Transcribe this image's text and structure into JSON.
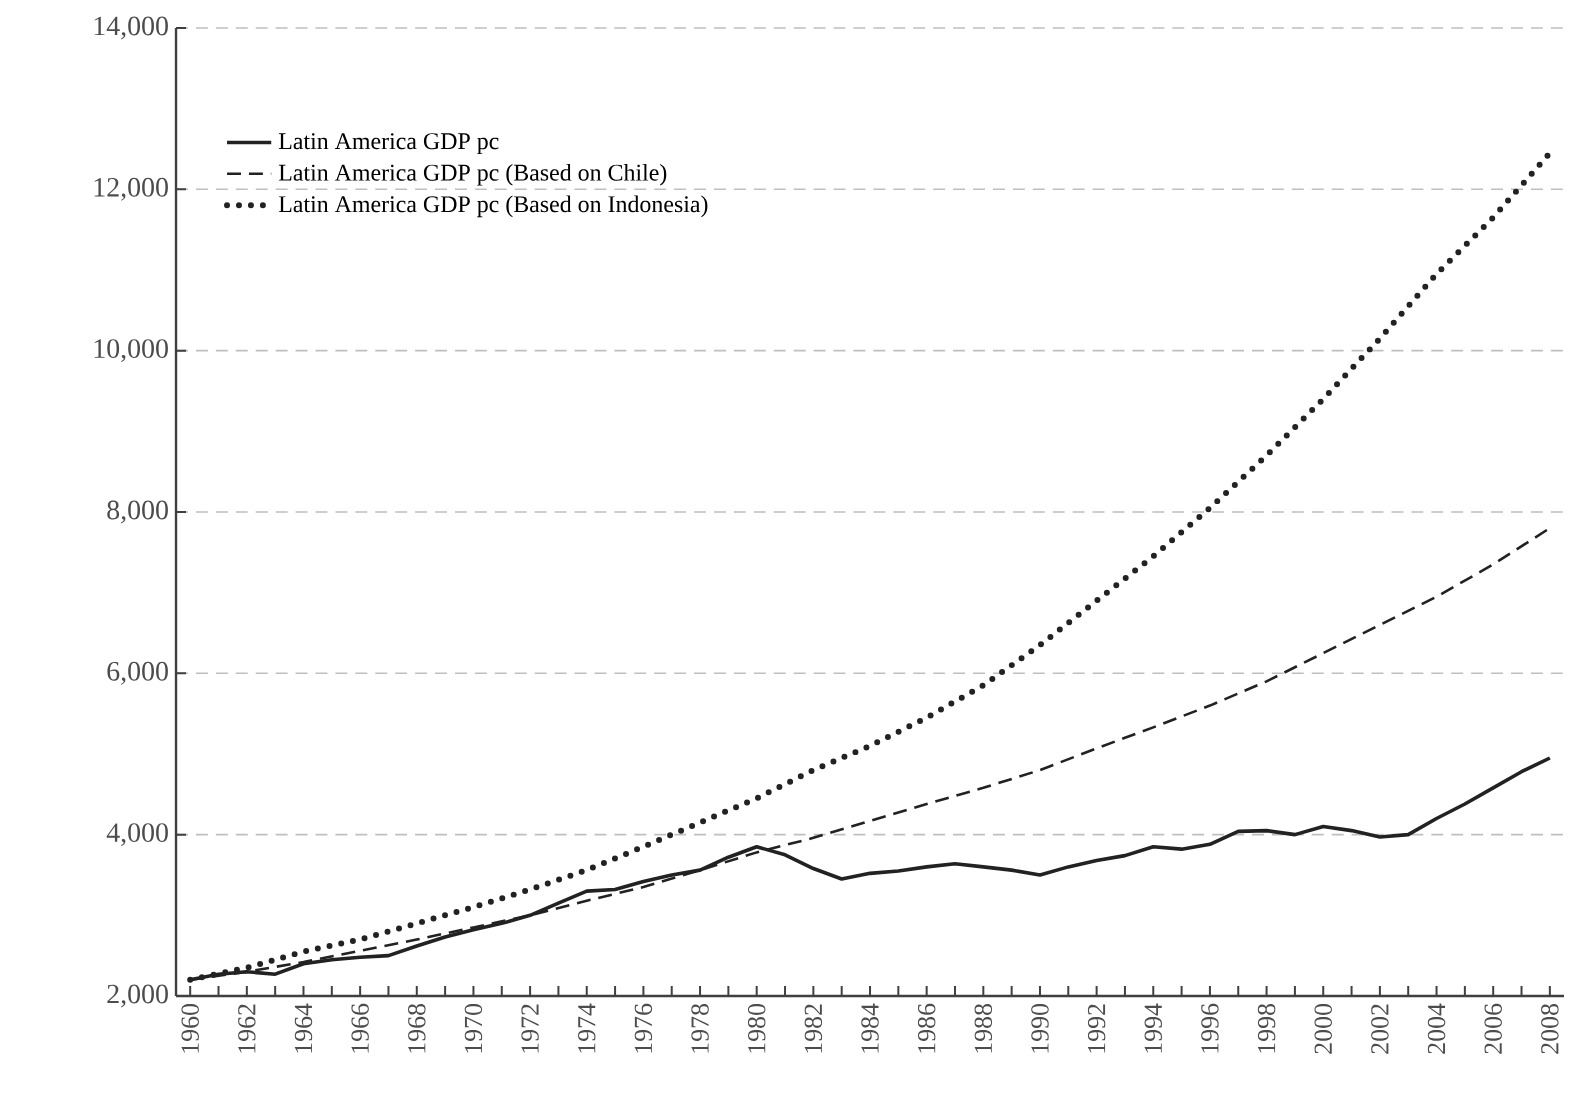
{
  "chart_data": {
    "type": "line",
    "xlim": [
      1959.5,
      2008.5
    ],
    "ylim": [
      2000,
      14000
    ],
    "yticks": [
      {
        "value": 2000,
        "label": "2,000"
      },
      {
        "value": 4000,
        "label": "4,000"
      },
      {
        "value": 6000,
        "label": "6,000"
      },
      {
        "value": 8000,
        "label": "8,000"
      },
      {
        "value": 10000,
        "label": "10,000"
      },
      {
        "value": 12000,
        "label": "12,000"
      },
      {
        "value": 14000,
        "label": "14,000"
      }
    ],
    "xticks": [
      1960,
      {
        "value": 1961,
        "label": null
      },
      1962,
      {
        "value": 1963,
        "label": null
      },
      1964,
      {
        "value": 1965,
        "label": null
      },
      1966,
      {
        "value": 1967,
        "label": null
      },
      1968,
      {
        "value": 1969,
        "label": null
      },
      1970,
      {
        "value": 1971,
        "label": null
      },
      1972,
      {
        "value": 1973,
        "label": null
      },
      1974,
      {
        "value": 1975,
        "label": null
      },
      1976,
      {
        "value": 1977,
        "label": null
      },
      1978,
      {
        "value": 1979,
        "label": null
      },
      1980,
      {
        "value": 1981,
        "label": null
      },
      1982,
      {
        "value": 1983,
        "label": null
      },
      1984,
      {
        "value": 1985,
        "label": null
      },
      1986,
      {
        "value": 1987,
        "label": null
      },
      1988,
      {
        "value": 1989,
        "label": null
      },
      1990,
      {
        "value": 1991,
        "label": null
      },
      1992,
      {
        "value": 1993,
        "label": null
      },
      1994,
      {
        "value": 1995,
        "label": null
      },
      1996,
      {
        "value": 1997,
        "label": null
      },
      1998,
      {
        "value": 1999,
        "label": null
      },
      2000,
      {
        "value": 2001,
        "label": null
      },
      2002,
      {
        "value": 2003,
        "label": null
      },
      2004,
      {
        "value": 2005,
        "label": null
      },
      2006,
      {
        "value": 2007,
        "label": null
      },
      2008
    ],
    "grid": "y",
    "legend": "top left",
    "marker": "none",
    "series": [
      {
        "name": "Latin America GDP pc",
        "color": "#222222",
        "line_style": "solid",
        "x": [
          1960,
          1961,
          1962,
          1963,
          1964,
          1965,
          1966,
          1967,
          1968,
          1969,
          1970,
          1971,
          1972,
          1973,
          1974,
          1975,
          1976,
          1977,
          1978,
          1979,
          1980,
          1981,
          1982,
          1983,
          1984,
          1985,
          1986,
          1987,
          1988,
          1989,
          1990,
          1991,
          1992,
          1993,
          1994,
          1995,
          1996,
          1997,
          1998,
          1999,
          2000,
          2001,
          2002,
          2003,
          2004,
          2005,
          2006,
          2007,
          2008
        ],
        "values": [
          2200,
          2270,
          2300,
          2270,
          2400,
          2450,
          2480,
          2500,
          2620,
          2730,
          2820,
          2900,
          3000,
          3150,
          3300,
          3320,
          3420,
          3500,
          3560,
          3720,
          3850,
          3750,
          3580,
          3450,
          3520,
          3550,
          3600,
          3640,
          3600,
          3560,
          3500,
          3600,
          3680,
          3740,
          3850,
          3820,
          3880,
          4040,
          4050,
          4000,
          4100,
          4050,
          3970,
          4000,
          4200,
          4380,
          4580,
          4780,
          4950
        ]
      },
      {
        "name": "Latin America GDP pc (Based on Chile)",
        "color": "#222222",
        "line_style": "dashed",
        "x": [
          1960,
          1962,
          1964,
          1966,
          1968,
          1970,
          1972,
          1974,
          1976,
          1978,
          1980,
          1982,
          1984,
          1986,
          1988,
          1990,
          1992,
          1994,
          1996,
          1998,
          2000,
          2002,
          2004,
          2006,
          2008
        ],
        "values": [
          2200,
          2300,
          2420,
          2560,
          2700,
          2850,
          3000,
          3180,
          3350,
          3560,
          3780,
          3960,
          4170,
          4380,
          4580,
          4800,
          5070,
          5330,
          5600,
          5900,
          6250,
          6600,
          6950,
          7350,
          7800
        ]
      },
      {
        "name": "Latin America GDP pc (Based on Indonesia)",
        "color": "#222222",
        "line_style": "dotted",
        "x": [
          1960,
          1962,
          1964,
          1966,
          1968,
          1970,
          1972,
          1974,
          1976,
          1978,
          1980,
          1982,
          1984,
          1986,
          1988,
          1990,
          1992,
          1994,
          1996,
          1998,
          2000,
          2002,
          2004,
          2006,
          2008
        ],
        "values": [
          2200,
          2350,
          2550,
          2700,
          2900,
          3100,
          3320,
          3560,
          3850,
          4150,
          4450,
          4800,
          5100,
          5450,
          5850,
          6350,
          6900,
          7450,
          8050,
          8700,
          9400,
          10150,
          10950,
          11650,
          12450
        ]
      }
    ]
  }
}
